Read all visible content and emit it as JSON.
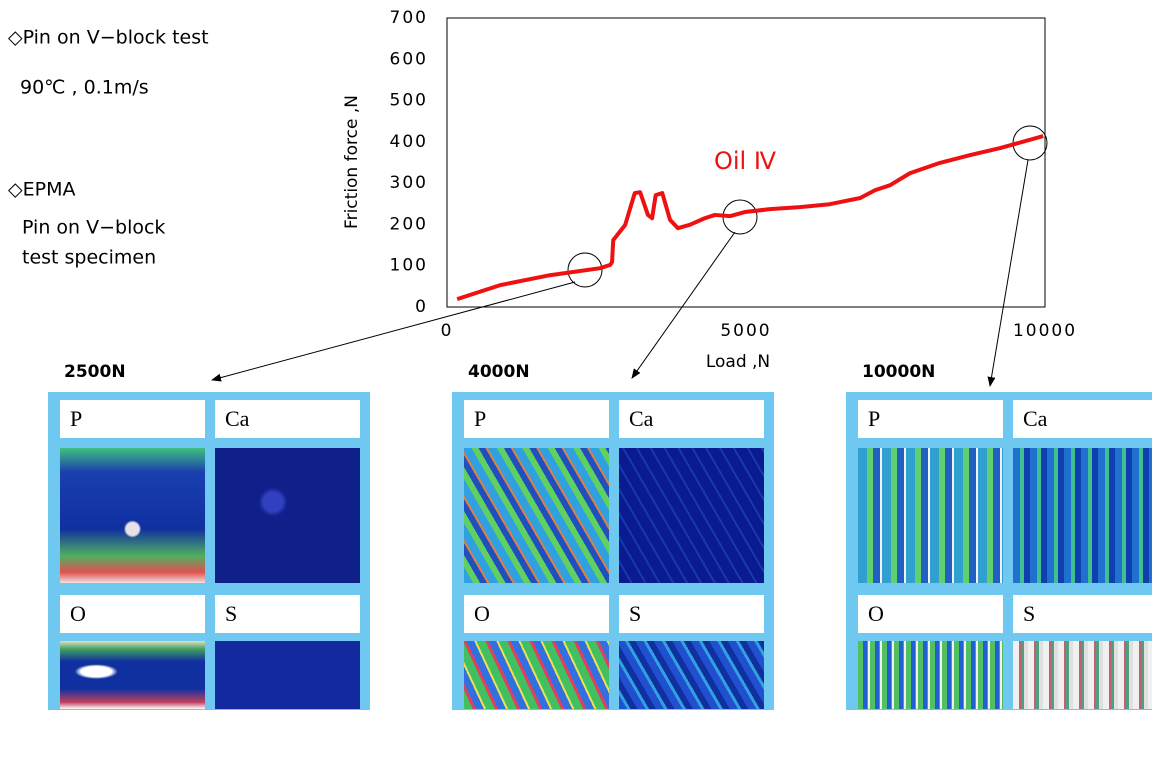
{
  "notes": [
    "◇Pin on V−block test",
    "90℃ , 0.1m/s",
    "◇EPMA",
    "Pin on V−block",
    "test specimen"
  ],
  "chart_data": {
    "type": "line",
    "y_label": "Friction force ,N",
    "x_label": "Load ,N",
    "annotation": "Oil Ⅳ",
    "xlim": [
      0,
      10000
    ],
    "ylim": [
      0,
      700
    ],
    "xticks": [
      0,
      5000,
      10000
    ],
    "yticks": [
      0,
      100,
      200,
      300,
      400,
      500,
      600,
      700
    ],
    "series": [
      {
        "color": "#ee1111",
        "x": [
          170,
          890,
          1720,
          2560,
          2730,
          2760,
          2780,
          2980,
          3140,
          3230,
          3360,
          3430,
          3490,
          3600,
          3730,
          3860,
          4060,
          4310,
          4480,
          4730,
          4980,
          5400,
          5900,
          6400,
          6910,
          7160,
          7410,
          7740,
          8240,
          8750,
          9250,
          9970
        ],
        "values": [
          19,
          53,
          77,
          94,
          102,
          109,
          162,
          199,
          276,
          278,
          223,
          215,
          271,
          276,
          211,
          191,
          199,
          215,
          223,
          220,
          230,
          237,
          242,
          249,
          264,
          283,
          295,
          324,
          349,
          368,
          385,
          414
        ]
      }
    ]
  },
  "panels": [
    {
      "title": "2500N",
      "cells": [
        "P",
        "Ca",
        "O",
        "S"
      ]
    },
    {
      "title": "4000N",
      "cells": [
        "P",
        "Ca",
        "O",
        "S"
      ]
    },
    {
      "title": "10000N",
      "cells": [
        "P",
        "Ca",
        "O",
        "S"
      ]
    }
  ]
}
